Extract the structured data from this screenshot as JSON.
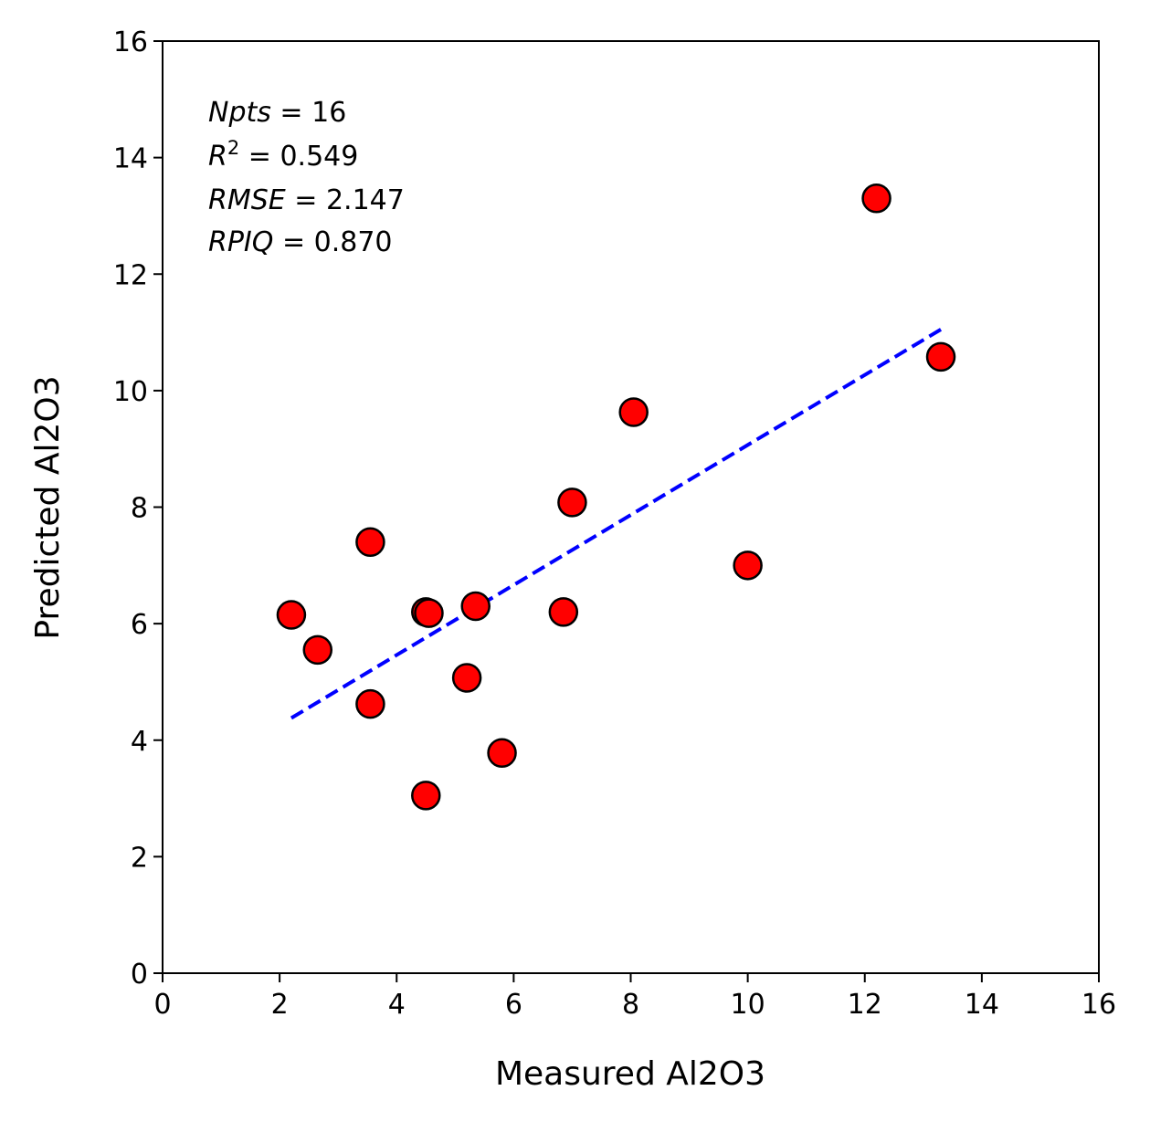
{
  "chart_data": {
    "type": "scatter",
    "xlabel": "Measured Al2O3",
    "ylabel": "Predicted Al2O3",
    "xlim": [
      0,
      16
    ],
    "ylim": [
      0,
      16
    ],
    "xticks": [
      0,
      2,
      4,
      6,
      8,
      10,
      12,
      14,
      16
    ],
    "yticks": [
      0,
      2,
      4,
      6,
      8,
      10,
      12,
      14,
      16
    ],
    "grid": false,
    "marker_color": "#ff0000",
    "marker_edge_color": "#000000",
    "points": [
      {
        "x": 2.2,
        "y": 6.15
      },
      {
        "x": 2.65,
        "y": 5.55
      },
      {
        "x": 3.55,
        "y": 7.4
      },
      {
        "x": 3.55,
        "y": 4.62
      },
      {
        "x": 4.5,
        "y": 6.2
      },
      {
        "x": 4.55,
        "y": 6.18
      },
      {
        "x": 4.5,
        "y": 3.05
      },
      {
        "x": 5.2,
        "y": 5.07
      },
      {
        "x": 5.35,
        "y": 6.3
      },
      {
        "x": 5.8,
        "y": 3.78
      },
      {
        "x": 6.85,
        "y": 6.2
      },
      {
        "x": 7.0,
        "y": 8.08
      },
      {
        "x": 8.05,
        "y": 9.63
      },
      {
        "x": 10.0,
        "y": 7.0
      },
      {
        "x": 12.2,
        "y": 13.3
      },
      {
        "x": 13.3,
        "y": 10.58
      }
    ],
    "fit_line": {
      "style": "dashed",
      "color": "#0000ff",
      "x": [
        2.2,
        13.3
      ],
      "y": [
        4.38,
        11.05
      ]
    },
    "annotations": {
      "npts": {
        "name": "Npts",
        "value": "16"
      },
      "r2": {
        "name": "R",
        "sup": "2",
        "value": "0.549"
      },
      "rmse": {
        "name": "RMSE",
        "value": "2.147"
      },
      "rpiq": {
        "name": "RPIQ",
        "value": "0.870"
      }
    }
  }
}
